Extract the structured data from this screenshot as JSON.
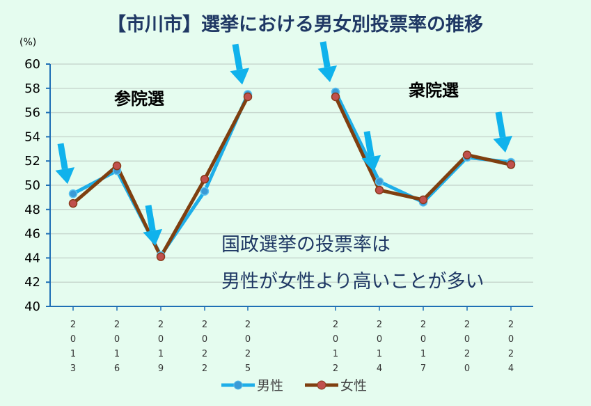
{
  "chart_data": {
    "type": "line",
    "title": "【市川市】選挙における男女別投票率の推移",
    "ylabel": "(%)",
    "ylim": [
      40,
      60
    ],
    "yticks": [
      40,
      42,
      44,
      46,
      48,
      50,
      52,
      54,
      56,
      58,
      60
    ],
    "grid": true,
    "legend_position": "bottom",
    "groups": [
      {
        "label": "参院選",
        "categories": [
          "2013",
          "2016",
          "2019",
          "2022",
          "2025"
        ],
        "series": [
          {
            "name": "男性",
            "color": "#1eaee8",
            "values": [
              49.3,
              51.2,
              44.2,
              49.5,
              57.5
            ]
          },
          {
            "name": "女性",
            "color": "#7f3f10",
            "values": [
              48.5,
              51.6,
              44.1,
              50.5,
              57.3
            ]
          }
        ],
        "arrow_categories": [
          "2013",
          "2019",
          "2025"
        ]
      },
      {
        "label": "衆院選",
        "categories": [
          "2012",
          "2014",
          "2017",
          "2020",
          "2024"
        ],
        "series": [
          {
            "name": "男性",
            "color": "#1eaee8",
            "values": [
              57.7,
              50.3,
              48.6,
              52.3,
              51.9
            ]
          },
          {
            "name": "女性",
            "color": "#7f3f10",
            "values": [
              57.3,
              49.6,
              48.8,
              52.5,
              51.7
            ]
          }
        ],
        "arrow_categories": [
          "2012",
          "2014",
          "2024"
        ]
      }
    ],
    "annotation": [
      "国政選挙の投票率は",
      "男性が女性より高いことが多い"
    ],
    "legend": [
      "男性",
      "女性"
    ]
  },
  "colors": {
    "male": "#1eaee8",
    "female": "#7f3f10",
    "arrow": "#10b2ec",
    "axis": "#1f6fb5",
    "grid": "#c8d8cf"
  }
}
